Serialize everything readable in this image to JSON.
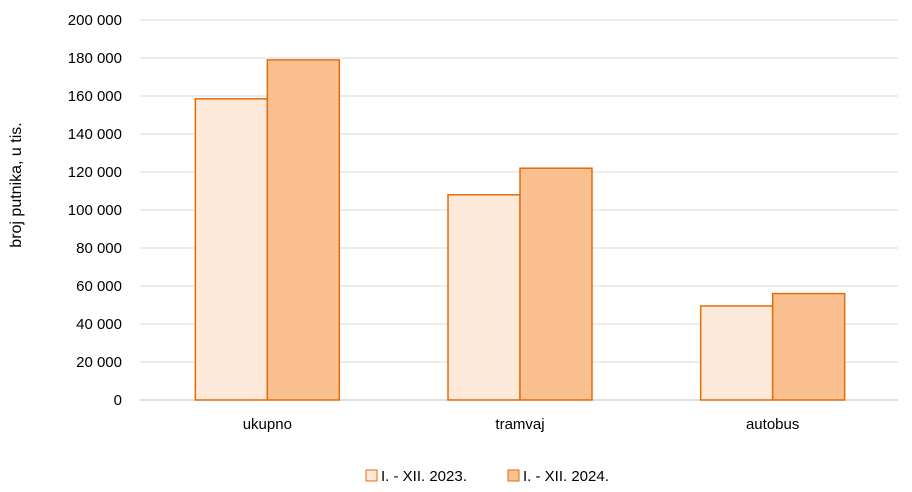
{
  "chart_data": {
    "type": "bar",
    "categories": [
      "ukupno",
      "tramvaj",
      "autobus"
    ],
    "series": [
      {
        "name": "I. - XII. 2023.",
        "values": [
          158500,
          108000,
          49500
        ],
        "color": "#FDE9D9",
        "stroke": "#E46C0A"
      },
      {
        "name": "I. - XII. 2024.",
        "values": [
          179000,
          122000,
          56000
        ],
        "color": "#FAC090",
        "stroke": "#E46C0A"
      }
    ],
    "ylabel": "broj putnika, u tis.",
    "ylim": [
      0,
      200000
    ],
    "yticks": [
      0,
      20000,
      40000,
      60000,
      80000,
      100000,
      120000,
      140000,
      160000,
      180000,
      200000
    ],
    "ytick_labels": [
      "0",
      "20 000",
      "40 000",
      "60 000",
      "80 000",
      "100 000",
      "120 000",
      "140 000",
      "160 000",
      "180 000",
      "200 000"
    ],
    "grid": true,
    "legend_position": "bottom-center",
    "gridline_color": "#D9D9D9"
  }
}
